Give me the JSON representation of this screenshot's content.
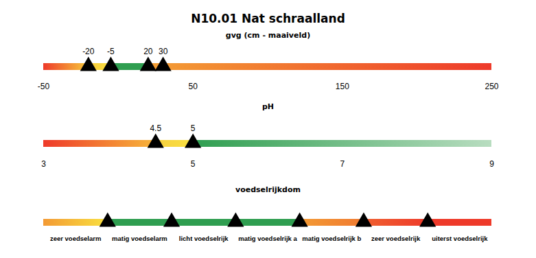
{
  "title": "N10.01 Nat schraalland",
  "chart_data": [
    {
      "type": "range_bar",
      "title": "gvg (cm - maaiveld)",
      "xlim": [
        -50,
        250
      ],
      "xticks": [
        -50,
        50,
        150,
        250
      ],
      "markers": [
        -20,
        -5,
        20,
        30
      ],
      "data_labels": true,
      "colors": [
        [
          "#ee3a2a",
          "#f7c83a"
        ],
        [
          "#f7c83a",
          "#f9e040"
        ],
        [
          "#2f9e50",
          "#2f9e50"
        ],
        [
          "#f4a034",
          "#f39a34"
        ],
        [
          "#f39a34",
          "#ee3a2a"
        ]
      ]
    },
    {
      "type": "range_bar",
      "title": "pH",
      "xlim": [
        3,
        9
      ],
      "xticks": [
        3,
        5,
        7,
        9
      ],
      "markers": [
        4.5,
        5
      ],
      "data_labels": true,
      "colors": [
        [
          "#ee3a2a",
          "#f7b53a"
        ],
        [
          "#f7d040",
          "#f9e040"
        ],
        [
          "#2f9e50",
          "#b8ddc0"
        ]
      ]
    },
    {
      "type": "category_bar",
      "title": "voedselrijkdom",
      "categories": [
        "zeer voedselarm",
        "matig voedselarm",
        "licht voedselrijk",
        "matig voedselrijk a",
        "matig voedselrijk b",
        "zeer voedselrijk",
        "uiterst voedselrijk"
      ],
      "xlim": [
        0,
        7
      ],
      "markers": [
        1,
        2,
        3,
        4,
        5,
        6
      ],
      "data_labels": false,
      "colors": [
        [
          "#f39a34",
          "#f9e040"
        ],
        [
          "#2f9e50",
          "#2f9e50"
        ],
        [
          "#2f9e50",
          "#2f9e50"
        ],
        [
          "#2f9e50",
          "#2f9e50"
        ],
        [
          "#f39a34",
          "#f07a30"
        ],
        [
          "#f06030",
          "#ee3a2a"
        ],
        [
          "#ee3a2a",
          "#ee3a2a"
        ]
      ]
    }
  ]
}
